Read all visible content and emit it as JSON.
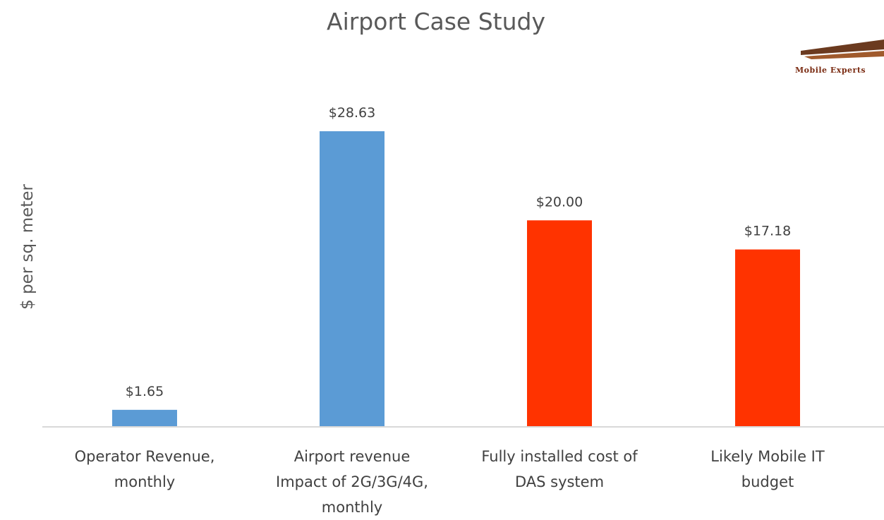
{
  "chart_data": {
    "type": "bar",
    "title": "Airport Case Study",
    "xlabel": "",
    "ylabel": "$ per sq. meter",
    "ylim": [
      0,
      30
    ],
    "grid": false,
    "categories": [
      [
        "Operator Revenue,",
        "monthly"
      ],
      [
        "Airport revenue",
        "Impact of 2G/3G/4G,",
        "monthly"
      ],
      [
        "Fully installed cost of",
        "DAS system"
      ],
      [
        "Likely Mobile IT",
        "budget"
      ]
    ],
    "values": [
      1.65,
      28.63,
      20.0,
      17.18
    ],
    "data_labels": [
      "$1.65",
      "$28.63",
      "$20.00",
      "$17.18"
    ],
    "colors": [
      "#5b9bd5",
      "#5b9bd5",
      "#ff3300",
      "#ff3300"
    ]
  },
  "logo": {
    "text": "Mobile Experts"
  },
  "colors": {
    "axis": "#d9d9d9",
    "logo_bar": "#6b3a1f"
  }
}
